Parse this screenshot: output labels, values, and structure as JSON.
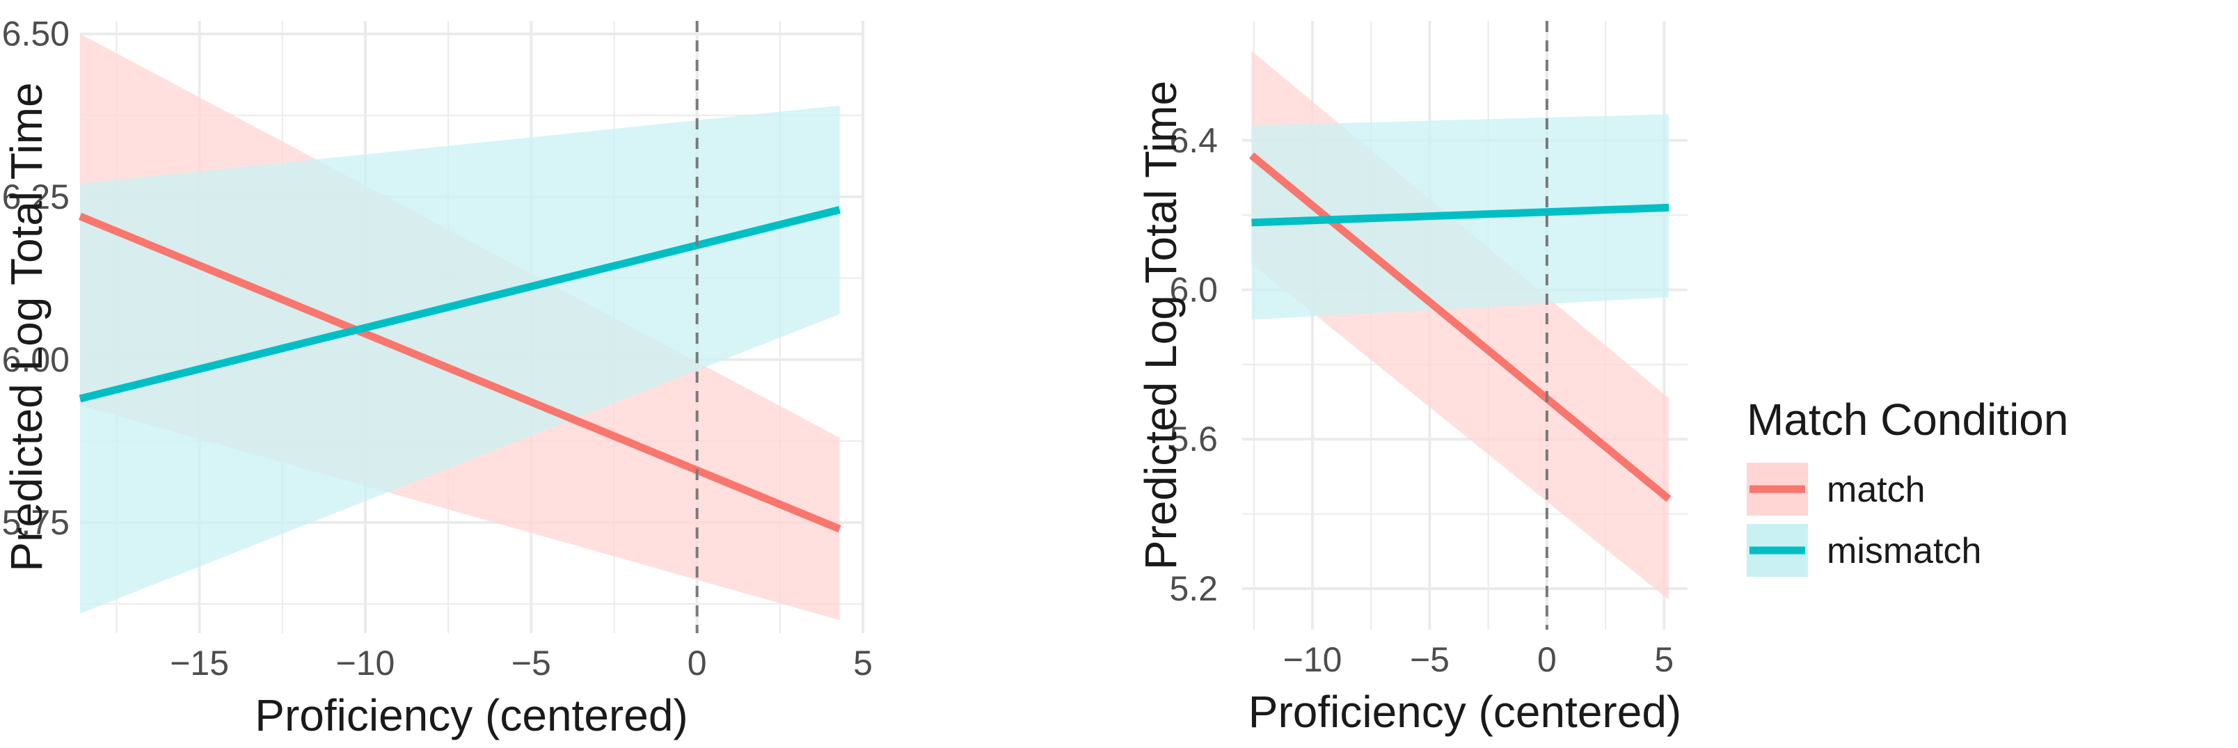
{
  "colors": {
    "match": "#F8766D",
    "mismatch": "#00BFC4",
    "match_band": "#FFD6D3",
    "mismatch_band": "#C9F1F3",
    "grid": "#EBEBEB",
    "refline": "#7a7a7a"
  },
  "legend": {
    "title": "Match Condition",
    "entries": [
      {
        "key": "match",
        "label": "match"
      },
      {
        "key": "mismatch",
        "label": "mismatch"
      }
    ]
  },
  "chart_data": [
    {
      "type": "line",
      "title": "",
      "xlabel": "Proficiency (centered)",
      "ylabel": "Predicted Log Total Time",
      "xlim": [
        -18.6,
        5.0
      ],
      "ylim": [
        5.58,
        6.52
      ],
      "xticks": [
        -15,
        -10,
        -5,
        0,
        5
      ],
      "xtick_labels": [
        "−15",
        "−10",
        "−5",
        "0",
        "5"
      ],
      "yticks": [
        5.75,
        6.0,
        6.25,
        6.5
      ],
      "ytick_labels": [
        "5.75",
        "6.00",
        "6.25",
        "6.50"
      ],
      "reference_line_x": 0,
      "series": [
        {
          "name": "match",
          "x": [
            -18.6,
            4.3
          ],
          "y": [
            6.22,
            5.74
          ],
          "lower": [
            5.93,
            5.6
          ],
          "upper": [
            6.5,
            5.88
          ]
        },
        {
          "name": "mismatch",
          "x": [
            -18.6,
            4.3
          ],
          "y": [
            5.94,
            6.23
          ],
          "lower": [
            5.61,
            6.07
          ],
          "upper": [
            6.27,
            6.39
          ]
        }
      ]
    },
    {
      "type": "line",
      "title": "",
      "xlabel": "Proficiency (centered)",
      "ylabel": "Predicted Log Total Time",
      "xlim": [
        -13.0,
        6.0
      ],
      "ylim": [
        5.09,
        6.72
      ],
      "xticks": [
        -10,
        -5,
        0,
        5
      ],
      "xtick_labels": [
        "−10",
        "−5",
        "0",
        "5"
      ],
      "yticks": [
        5.2,
        5.6,
        6.0,
        6.4
      ],
      "ytick_labels": [
        "5.2",
        "5.6",
        "6.0",
        "6.4"
      ],
      "reference_line_x": 0,
      "series": [
        {
          "name": "match",
          "x": [
            -12.6,
            5.2
          ],
          "y": [
            6.36,
            5.44
          ],
          "lower": [
            6.07,
            5.17
          ],
          "upper": [
            6.64,
            5.71
          ]
        },
        {
          "name": "mismatch",
          "x": [
            -12.6,
            5.2
          ],
          "y": [
            6.18,
            6.22
          ],
          "lower": [
            5.92,
            5.98
          ],
          "upper": [
            6.44,
            6.47
          ]
        }
      ]
    }
  ]
}
